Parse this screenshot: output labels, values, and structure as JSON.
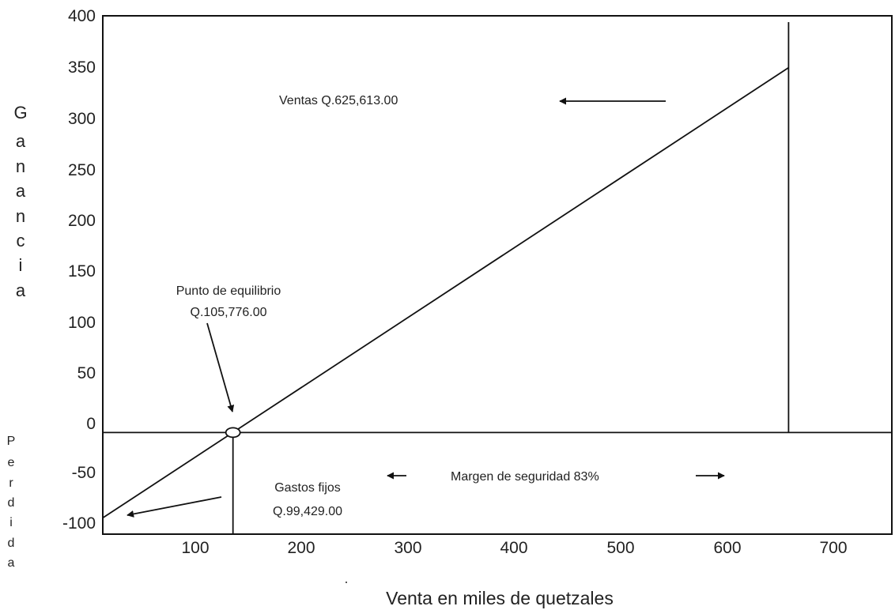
{
  "chart_data": {
    "type": "line",
    "title": "",
    "xlabel": "Venta en miles de quetzales",
    "ylabel_top": "Ganancia",
    "ylabel_bottom": "Perdida",
    "xlim": [
      22,
      725
    ],
    "ylim": [
      -110,
      400
    ],
    "x_ticks": [
      100,
      200,
      300,
      400,
      500,
      600,
      700
    ],
    "y_ticks": [
      400,
      350,
      300,
      250,
      200,
      150,
      100,
      50,
      0,
      -50,
      -100
    ],
    "series": [
      {
        "x": [
          22,
          633
        ],
        "y": [
          -94,
          349
        ]
      }
    ],
    "reference_lines": {
      "zero_line_y": -10,
      "sales_line_x": 633,
      "break_even_line_x": 138
    },
    "break_even_point": {
      "x": 138,
      "y": -10
    },
    "annotations": {
      "ventas": "Ventas Q.625,613.00",
      "punto_line1": "Punto de equilibrio",
      "punto_line2": "Q.105,776.00",
      "gastos_line1": "Gastos fijos",
      "gastos_line2": "Q.99,429.00",
      "margen": "Margen de seguridad  83%"
    },
    "grid": false,
    "legend": "none"
  }
}
